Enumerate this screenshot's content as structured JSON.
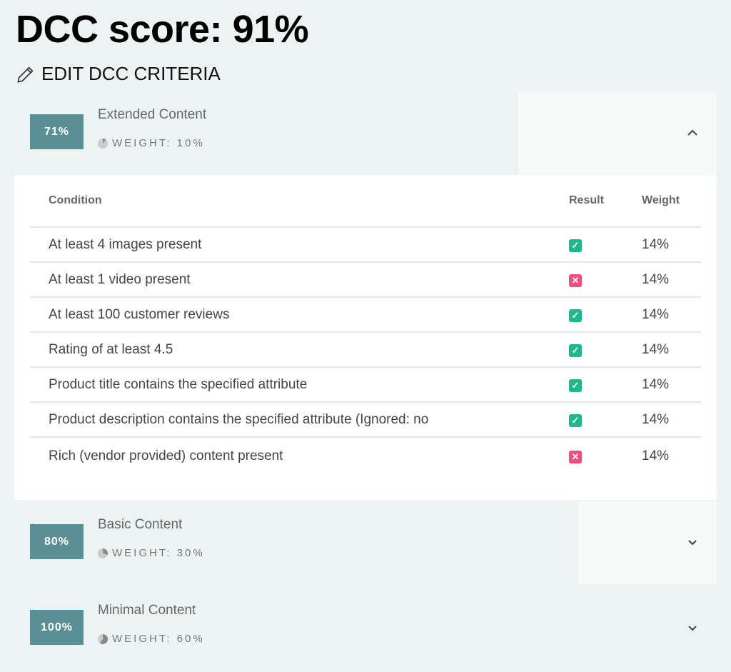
{
  "title": "DCC score: 91%",
  "edit_label": "EDIT DCC CRITERIA",
  "sections": [
    {
      "score": "71%",
      "name": "Extended Content",
      "weight": "WEIGHT: 10%",
      "expanded": true
    },
    {
      "score": "80%",
      "name": "Basic Content",
      "weight": "WEIGHT: 30%",
      "expanded": false
    },
    {
      "score": "100%",
      "name": "Minimal Content",
      "weight": "WEIGHT: 60%",
      "expanded": false
    }
  ],
  "table": {
    "headers": [
      "Condition",
      "Result",
      "Weight"
    ],
    "rows": [
      {
        "condition": "At least 4 images present",
        "result": "pass",
        "weight": "14%"
      },
      {
        "condition": "At least 1 video present",
        "result": "fail",
        "weight": "14%"
      },
      {
        "condition": "At least 100 customer reviews",
        "result": "pass",
        "weight": "14%"
      },
      {
        "condition": "Rating of at least 4.5",
        "result": "pass",
        "weight": "14%"
      },
      {
        "condition": "Product title contains the specified attribute",
        "result": "pass",
        "weight": "14%"
      },
      {
        "condition": "Product description contains the specified attribute (Ignored: no",
        "result": "pass",
        "weight": "14%"
      },
      {
        "condition": "Rich (vendor provided) content present",
        "result": "fail",
        "weight": "14%"
      }
    ]
  },
  "colors": {
    "badge": "#5a8f95",
    "pass": "#1fb88e",
    "fail": "#ef4e7e"
  }
}
